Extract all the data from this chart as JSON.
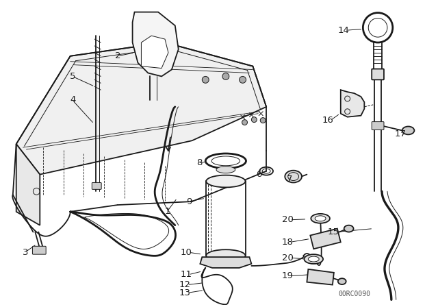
{
  "background_color": "#ffffff",
  "line_color": "#1a1a1a",
  "fig_width": 6.4,
  "fig_height": 4.48,
  "watermark": "00RC0090",
  "lw_main": 1.3,
  "lw_thick": 2.0,
  "lw_thin": 0.7,
  "lw_dashed": 0.6
}
